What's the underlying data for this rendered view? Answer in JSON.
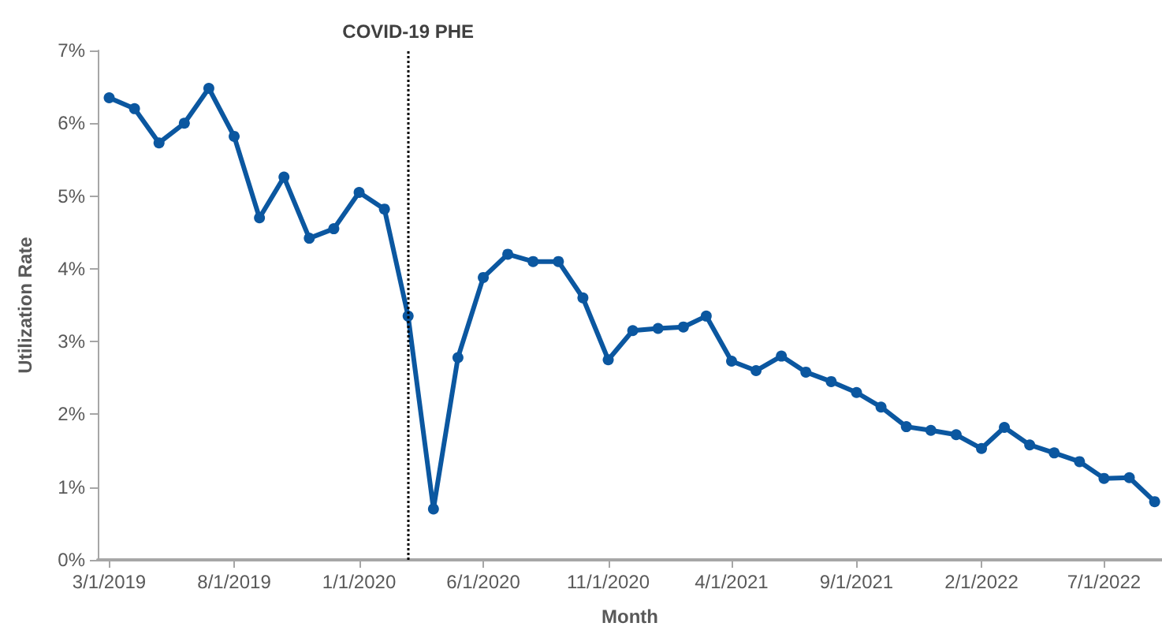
{
  "chart_data": {
    "type": "line",
    "xlabel": "Month",
    "ylabel": "Utilization Rate",
    "x": [
      "2019-03-01",
      "2019-04-01",
      "2019-05-01",
      "2019-06-01",
      "2019-07-01",
      "2019-08-01",
      "2019-09-01",
      "2019-10-01",
      "2019-11-01",
      "2019-12-01",
      "2020-01-01",
      "2020-02-01",
      "2020-03-01",
      "2020-04-01",
      "2020-05-01",
      "2020-06-01",
      "2020-07-01",
      "2020-08-01",
      "2020-09-01",
      "2020-10-01",
      "2020-11-01",
      "2020-12-01",
      "2021-01-01",
      "2021-02-01",
      "2021-03-01",
      "2021-04-01",
      "2021-05-01",
      "2021-06-01",
      "2021-07-01",
      "2021-08-01",
      "2021-09-01",
      "2021-10-01",
      "2021-11-01",
      "2021-12-01",
      "2022-01-01",
      "2022-02-01",
      "2022-03-01",
      "2022-04-01",
      "2022-05-01",
      "2022-06-01",
      "2022-07-01",
      "2022-08-01",
      "2022-09-01"
    ],
    "series": [
      {
        "color": "#0b57a0",
        "values": [
          6.35,
          6.2,
          5.73,
          6.0,
          6.48,
          5.82,
          4.7,
          5.26,
          4.42,
          4.55,
          5.05,
          4.82,
          3.35,
          0.7,
          2.78,
          3.88,
          4.2,
          4.1,
          4.1,
          3.6,
          2.75,
          3.15,
          3.18,
          3.2,
          3.35,
          2.73,
          2.6,
          2.8,
          2.58,
          2.45,
          2.3,
          2.1,
          1.83,
          1.78,
          1.72,
          1.53,
          1.82,
          1.58,
          1.47,
          1.35,
          1.12,
          1.13,
          0.8
        ]
      }
    ],
    "xlim": [
      "2019-02-15",
      "2022-09-10"
    ],
    "xticks": [
      {
        "value": "2019-03-01",
        "label": "3/1/2019"
      },
      {
        "value": "2019-08-01",
        "label": "8/1/2019"
      },
      {
        "value": "2020-01-01",
        "label": "1/1/2020"
      },
      {
        "value": "2020-06-01",
        "label": "6/1/2020"
      },
      {
        "value": "2020-11-01",
        "label": "11/1/2020"
      },
      {
        "value": "2021-04-01",
        "label": "4/1/2021"
      },
      {
        "value": "2021-09-01",
        "label": "9/1/2021"
      },
      {
        "value": "2022-02-01",
        "label": "2/1/2022"
      },
      {
        "value": "2022-07-01",
        "label": "7/1/2022"
      }
    ],
    "ylim": [
      0,
      7
    ],
    "yticks": [
      {
        "value": 0,
        "label": "0%"
      },
      {
        "value": 1,
        "label": "1%"
      },
      {
        "value": 2,
        "label": "2%"
      },
      {
        "value": 3,
        "label": "3%"
      },
      {
        "value": 4,
        "label": "4%"
      },
      {
        "value": 5,
        "label": "5%"
      },
      {
        "value": 6,
        "label": "6%"
      },
      {
        "value": 7,
        "label": "7%"
      }
    ],
    "ref_lines": [
      {
        "axis": "x",
        "value": "2020-03-01",
        "label": "COVID-19 PHE",
        "color": "#000000",
        "line_style": "dotted"
      }
    ],
    "grid": false,
    "marker": "circle",
    "line_style": "solid"
  }
}
